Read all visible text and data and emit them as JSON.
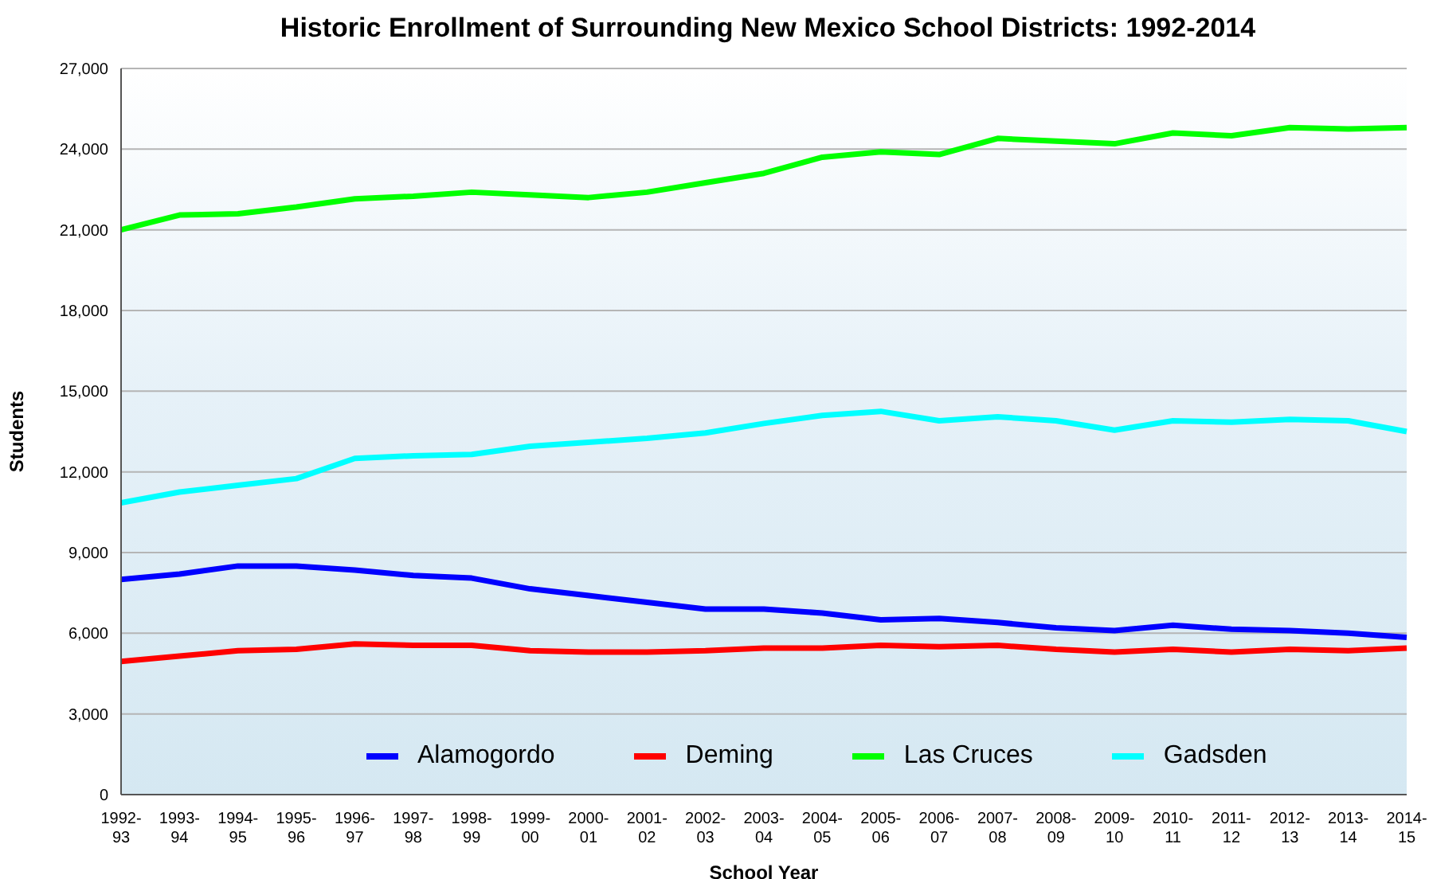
{
  "chart_data": {
    "type": "line",
    "title": "Historic Enrollment of Surrounding New Mexico School Districts: 1992-2014",
    "xlabel": "School Year",
    "ylabel": "Students",
    "categories": [
      "1992-93",
      "1993-94",
      "1994-95",
      "1995-96",
      "1996-97",
      "1997-98",
      "1998-99",
      "1999-00",
      "2000-01",
      "2001-02",
      "2002-03",
      "2003-04",
      "2004-05",
      "2005-06",
      "2006-07",
      "2007-08",
      "2008-09",
      "2009-10",
      "2010-11",
      "2011-12",
      "2012-13",
      "2013-14",
      "2014-15"
    ],
    "series": [
      {
        "name": "Alamogordo",
        "color": "#0000ff",
        "values": [
          8000,
          8200,
          8500,
          8500,
          8350,
          8150,
          8050,
          7650,
          7400,
          7150,
          6900,
          6900,
          6750,
          6500,
          6550,
          6400,
          6200,
          6100,
          6300,
          6150,
          6100,
          6000,
          5850
        ]
      },
      {
        "name": "Deming",
        "color": "#ff0000",
        "values": [
          4950,
          5150,
          5350,
          5400,
          5600,
          5550,
          5550,
          5350,
          5300,
          5300,
          5350,
          5450,
          5450,
          5550,
          5500,
          5550,
          5400,
          5300,
          5400,
          5300,
          5400,
          5350,
          5450
        ]
      },
      {
        "name": "Las Cruces",
        "color": "#00ff00",
        "values": [
          21000,
          21550,
          21600,
          21850,
          22150,
          22250,
          22400,
          22300,
          22200,
          22400,
          22750,
          23100,
          23700,
          23900,
          23800,
          24400,
          24300,
          24200,
          24600,
          24500,
          24800,
          24750,
          24800
        ]
      },
      {
        "name": "Gadsden",
        "color": "#00ffff",
        "values": [
          10850,
          11250,
          11500,
          11750,
          12500,
          12600,
          12650,
          12950,
          13100,
          13250,
          13450,
          13800,
          14100,
          14250,
          13900,
          14050,
          13900,
          13550,
          13900,
          13850,
          13950,
          13900,
          13500
        ]
      }
    ],
    "ylim": [
      0,
      27000
    ],
    "yticks": [
      0,
      {
        "value": 3000,
        "label": "3,000"
      },
      {
        "value": 6000,
        "label": "6,000"
      },
      {
        "value": 9000,
        "label": "9,000"
      },
      {
        "value": 12000,
        "label": "12,000"
      },
      {
        "value": 15000,
        "label": "15,000"
      },
      {
        "value": 18000,
        "label": "18,000"
      },
      {
        "value": 21000,
        "label": "21,000"
      },
      {
        "value": 24000,
        "label": "24,000"
      },
      {
        "value": 27000,
        "label": "27,000"
      }
    ],
    "grid": "y",
    "legend": "bottom",
    "marker": "none",
    "line_style": "solid"
  }
}
